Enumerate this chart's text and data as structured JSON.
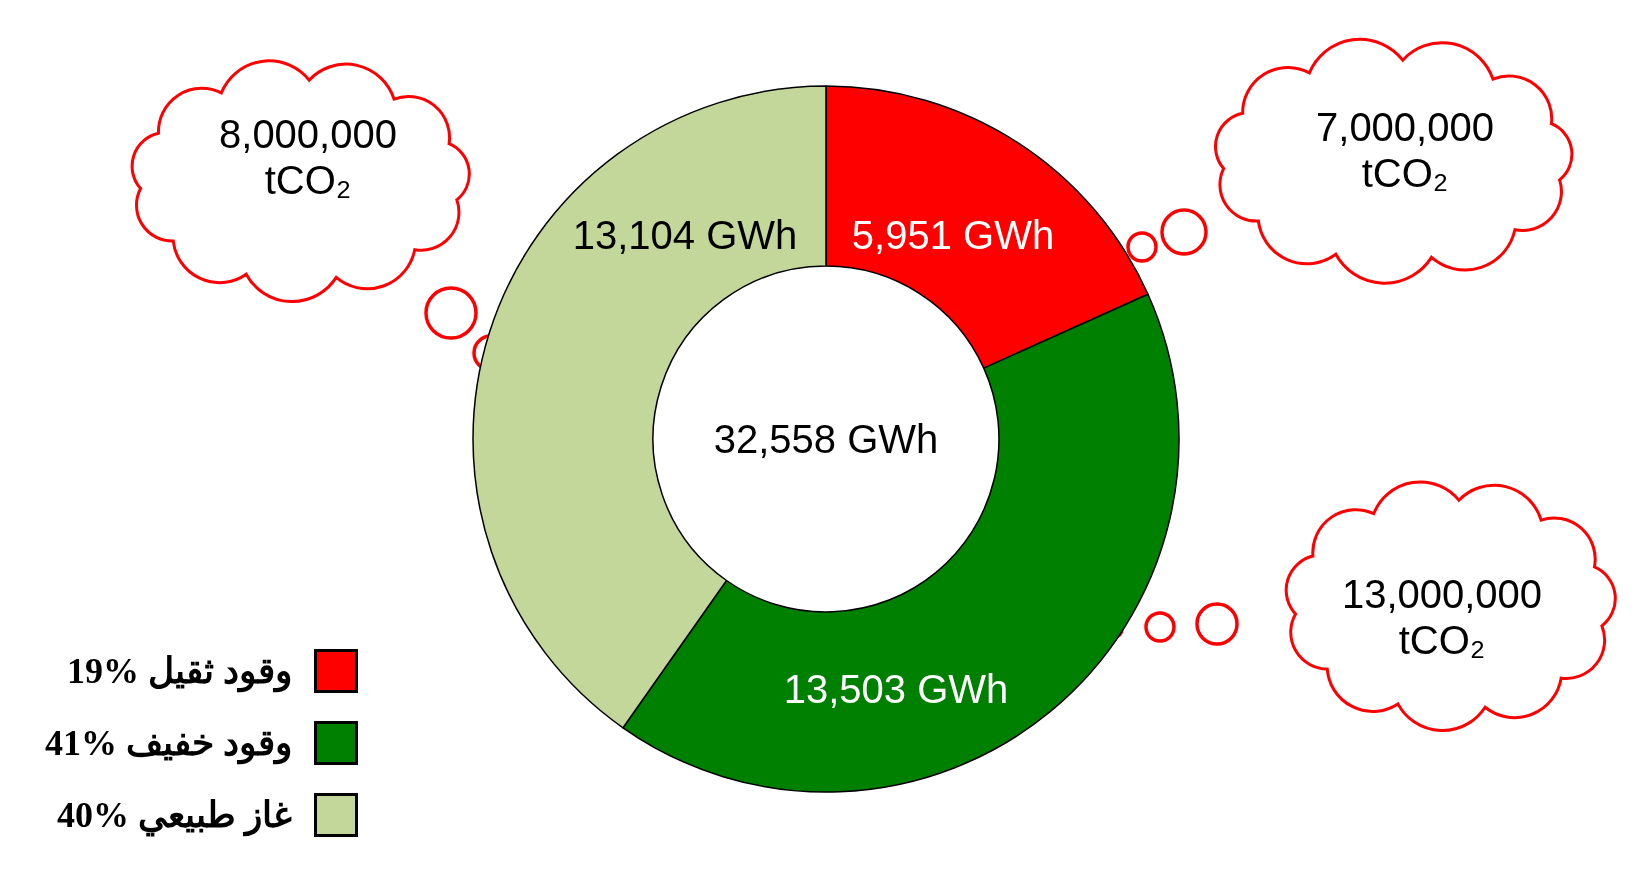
{
  "chart_data": {
    "type": "donut",
    "categories": [
      "وقود ثقيل %19",
      "وقود خفيف %41",
      "غاز طبيعي %40"
    ],
    "values": [
      5951,
      13503,
      13104
    ],
    "colors": [
      "#ff0000",
      "#008000",
      "#c4d79b"
    ],
    "value_labels": [
      "5,951 GWh",
      "13,503 GWh",
      "13,104 GWh"
    ],
    "legend": "bottom left",
    "annotations": [
      "32,558 GWh",
      "8,000,000 tCO₂",
      "7,000,000 tCO₂",
      "13,000,000 tCO₂"
    ]
  }
}
